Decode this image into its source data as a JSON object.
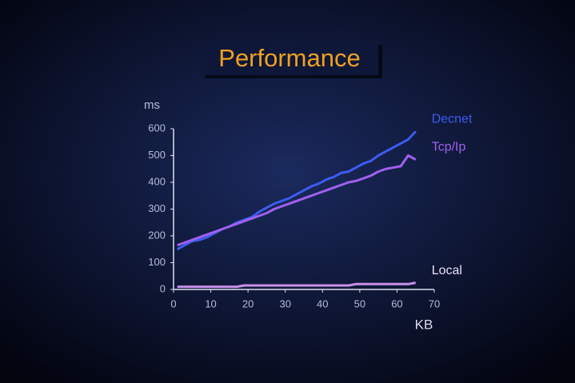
{
  "chart_data": {
    "type": "line",
    "title": "Performance",
    "y_label": "ms",
    "x_label": "KB",
    "x": [
      1,
      3,
      5,
      7,
      9,
      11,
      13,
      15,
      17,
      19,
      21,
      23,
      25,
      27,
      29,
      31,
      33,
      35,
      37,
      39,
      41,
      43,
      45,
      47,
      49,
      51,
      53,
      55,
      57,
      59,
      61,
      63,
      65
    ],
    "series": [
      {
        "name": "Decnet",
        "color": "#3d5cf0",
        "values": [
          150,
          165,
          180,
          185,
          195,
          210,
          225,
          235,
          250,
          260,
          270,
          290,
          305,
          320,
          330,
          340,
          355,
          370,
          385,
          395,
          410,
          420,
          435,
          440,
          455,
          470,
          480,
          500,
          515,
          530,
          545,
          560,
          590
        ]
      },
      {
        "name": "Tcp/Ip",
        "color": "#a060f0",
        "values": [
          165,
          175,
          185,
          195,
          205,
          215,
          225,
          235,
          245,
          255,
          265,
          275,
          285,
          300,
          310,
          320,
          330,
          340,
          350,
          360,
          370,
          380,
          390,
          400,
          405,
          415,
          425,
          440,
          450,
          455,
          460,
          500,
          485
        ]
      },
      {
        "name": "Local",
        "color": "#c890e8",
        "values": [
          10,
          10,
          10,
          10,
          10,
          10,
          10,
          10,
          10,
          15,
          15,
          15,
          15,
          15,
          15,
          15,
          15,
          15,
          15,
          15,
          15,
          15,
          15,
          15,
          20,
          20,
          20,
          20,
          20,
          20,
          20,
          20,
          25
        ]
      }
    ],
    "xlim": [
      0,
      70
    ],
    "xticks": [
      0,
      10,
      20,
      30,
      40,
      50,
      60,
      70
    ],
    "ylim": [
      0,
      600
    ],
    "yticks": [
      0,
      100,
      200,
      300,
      400,
      500,
      600
    ],
    "grid": false
  }
}
